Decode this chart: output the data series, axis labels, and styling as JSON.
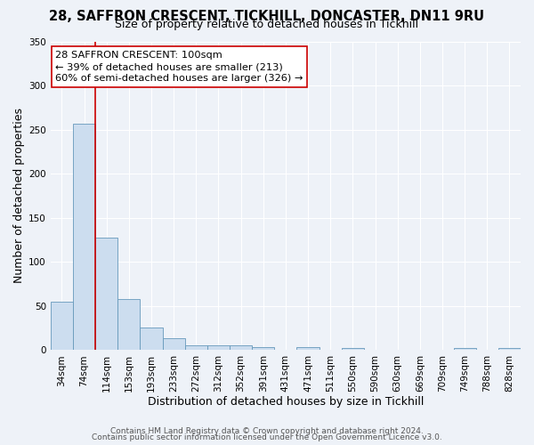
{
  "title": "28, SAFFRON CRESCENT, TICKHILL, DONCASTER, DN11 9RU",
  "subtitle": "Size of property relative to detached houses in Tickhill",
  "xlabel": "Distribution of detached houses by size in Tickhill",
  "ylabel": "Number of detached properties",
  "bar_color": "#ccddef",
  "bar_edge_color": "#6699bb",
  "categories": [
    "34sqm",
    "74sqm",
    "114sqm",
    "153sqm",
    "193sqm",
    "233sqm",
    "272sqm",
    "312sqm",
    "352sqm",
    "391sqm",
    "431sqm",
    "471sqm",
    "511sqm",
    "550sqm",
    "590sqm",
    "630sqm",
    "669sqm",
    "709sqm",
    "749sqm",
    "788sqm",
    "828sqm"
  ],
  "values": [
    55,
    257,
    127,
    58,
    26,
    13,
    5,
    5,
    5,
    3,
    0,
    3,
    0,
    2,
    0,
    0,
    0,
    0,
    2,
    0,
    2
  ],
  "ylim": [
    0,
    350
  ],
  "yticks": [
    0,
    50,
    100,
    150,
    200,
    250,
    300,
    350
  ],
  "vline_color": "#cc0000",
  "annotation_line1": "28 SAFFRON CRESCENT: 100sqm",
  "annotation_line2": "← 39% of detached houses are smaller (213)",
  "annotation_line3": "60% of semi-detached houses are larger (326) →",
  "footer_line1": "Contains HM Land Registry data © Crown copyright and database right 2024.",
  "footer_line2": "Contains public sector information licensed under the Open Government Licence v3.0.",
  "background_color": "#eef2f8",
  "grid_color": "#ffffff",
  "plot_bg_color": "#eef2f8",
  "title_fontsize": 10.5,
  "subtitle_fontsize": 9,
  "axis_label_fontsize": 9,
  "tick_fontsize": 7.5,
  "footer_fontsize": 6.5
}
